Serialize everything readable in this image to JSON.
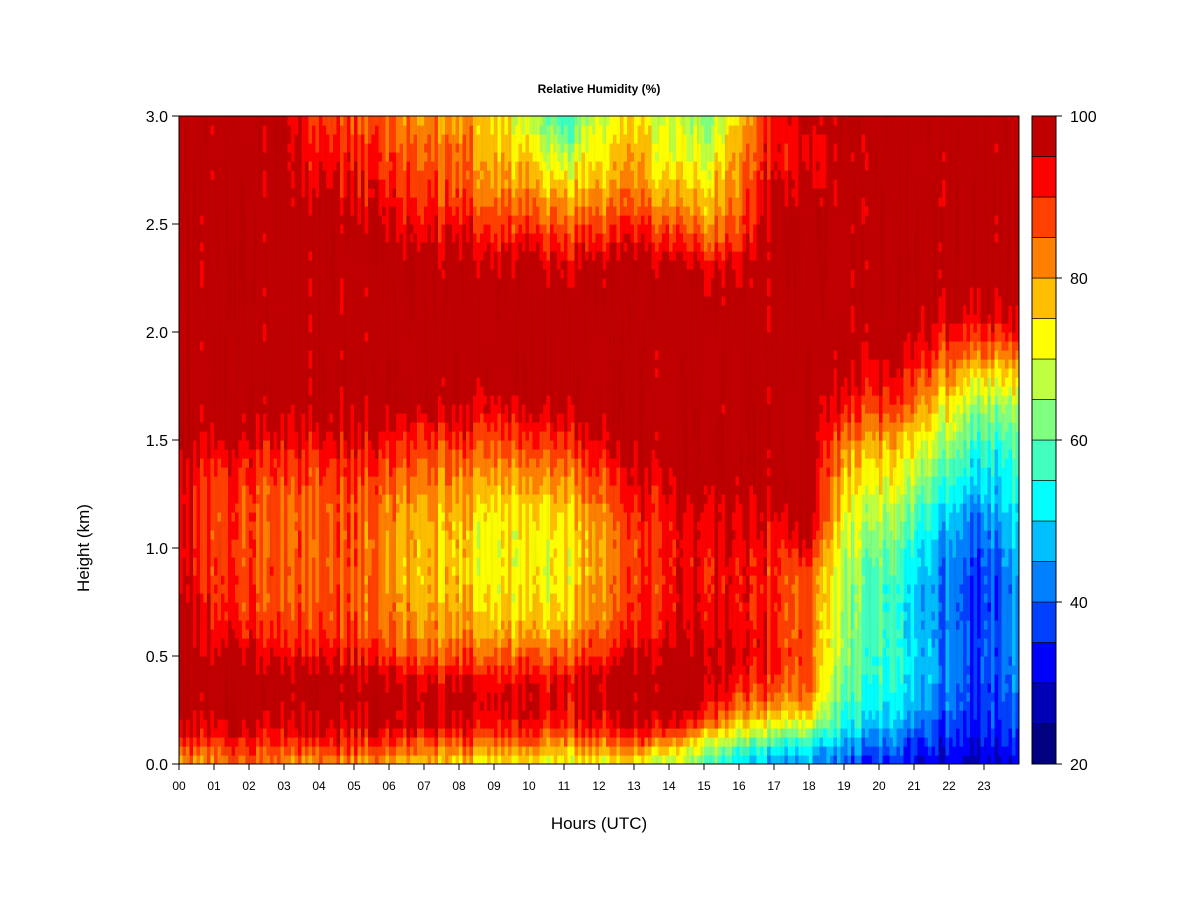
{
  "chart_data": {
    "type": "heatmap",
    "title": "Relative Humidity (%)",
    "xlabel": "Hours (UTC)",
    "ylabel": "Height (km)",
    "xlim": [
      0,
      24
    ],
    "ylim": [
      0.0,
      3.0
    ],
    "x_ticks": [
      0,
      1,
      2,
      3,
      4,
      5,
      6,
      7,
      8,
      9,
      10,
      11,
      12,
      13,
      14,
      15,
      16,
      17,
      18,
      19,
      20,
      21,
      22,
      23
    ],
    "x_tick_labels": [
      "00",
      "01",
      "02",
      "03",
      "04",
      "05",
      "06",
      "07",
      "08",
      "09",
      "10",
      "11",
      "12",
      "13",
      "14",
      "15",
      "16",
      "17",
      "18",
      "19",
      "20",
      "21",
      "22",
      "23"
    ],
    "y_ticks": [
      0.0,
      0.5,
      1.0,
      1.5,
      2.0,
      2.5,
      3.0
    ],
    "y_tick_labels": [
      "0.0",
      "0.5",
      "1.0",
      "1.5",
      "2.0",
      "2.5",
      "3.0"
    ],
    "colorbar": {
      "range": [
        20,
        100
      ],
      "levels": [
        20,
        25,
        30,
        35,
        40,
        45,
        50,
        55,
        60,
        65,
        70,
        75,
        80,
        85,
        90,
        95,
        100
      ],
      "colors": [
        "#000080",
        "#0000b4",
        "#0000ff",
        "#0040ff",
        "#0080ff",
        "#00bfff",
        "#00ffff",
        "#40ffbf",
        "#80ff80",
        "#bfff40",
        "#ffff00",
        "#ffbf00",
        "#ff8000",
        "#ff4000",
        "#ff0000",
        "#c00000",
        "#800000"
      ],
      "tick_values": [
        20,
        40,
        60,
        80,
        100
      ],
      "tick_labels": [
        "20",
        "40",
        "60",
        "80",
        "100"
      ]
    },
    "grid": false,
    "legend": "colorbar-right",
    "heights_km": [
      0.0,
      0.05,
      0.1,
      0.15,
      0.2,
      0.3,
      0.4,
      0.5,
      0.6,
      0.7,
      0.8,
      0.9,
      1.0,
      1.1,
      1.2,
      1.3,
      1.4,
      1.5,
      1.6,
      1.7,
      1.8,
      1.9,
      2.0,
      2.1,
      2.2,
      2.3,
      2.4,
      2.5,
      2.6,
      2.7,
      2.8,
      2.9,
      3.0
    ],
    "hours_utc": [
      0,
      1,
      2,
      3,
      4,
      5,
      6,
      7,
      8,
      9,
      10,
      11,
      12,
      13,
      14,
      15,
      16,
      17,
      18,
      19,
      20,
      21,
      22,
      23,
      24
    ],
    "rh_percent_profiles": [
      [
        80,
        85,
        90,
        95,
        97,
        100,
        100,
        100,
        100,
        100,
        98,
        97,
        96,
        96,
        96,
        97,
        97,
        98,
        100,
        100,
        100,
        100,
        100,
        100,
        100,
        100,
        100,
        100,
        100,
        100,
        100,
        100,
        100
      ],
      [
        82,
        86,
        90,
        94,
        96,
        100,
        100,
        98,
        94,
        92,
        90,
        90,
        88,
        88,
        88,
        90,
        92,
        96,
        100,
        100,
        100,
        100,
        100,
        100,
        100,
        100,
        100,
        100,
        100,
        100,
        100,
        100,
        100
      ],
      [
        83,
        87,
        90,
        94,
        96,
        100,
        100,
        95,
        90,
        88,
        87,
        87,
        86,
        86,
        86,
        88,
        90,
        94,
        98,
        100,
        100,
        100,
        100,
        100,
        100,
        100,
        100,
        100,
        100,
        100,
        100,
        100,
        100
      ],
      [
        81,
        86,
        90,
        94,
        96,
        100,
        99,
        94,
        90,
        88,
        87,
        87,
        86,
        86,
        86,
        88,
        90,
        94,
        98,
        100,
        100,
        100,
        100,
        100,
        100,
        100,
        100,
        100,
        100,
        100,
        100,
        100,
        97
      ],
      [
        81,
        86,
        91,
        95,
        97,
        100,
        99,
        94,
        90,
        88,
        87,
        86,
        86,
        86,
        86,
        88,
        90,
        94,
        97,
        100,
        100,
        100,
        100,
        100,
        100,
        100,
        100,
        100,
        98,
        95,
        92,
        90,
        88
      ],
      [
        80,
        85,
        90,
        94,
        96,
        100,
        98,
        92,
        89,
        87,
        86,
        86,
        86,
        86,
        87,
        89,
        91,
        95,
        98,
        100,
        100,
        100,
        100,
        100,
        100,
        100,
        100,
        99,
        96,
        93,
        91,
        89,
        87
      ],
      [
        79,
        84,
        89,
        93,
        96,
        99,
        95,
        88,
        84,
        82,
        81,
        80,
        80,
        81,
        82,
        85,
        88,
        92,
        96,
        100,
        100,
        100,
        100,
        100,
        100,
        100,
        98,
        95,
        92,
        90,
        88,
        86,
        84
      ],
      [
        76,
        82,
        88,
        93,
        96,
        99,
        94,
        86,
        82,
        80,
        78,
        78,
        78,
        79,
        80,
        83,
        86,
        90,
        95,
        100,
        100,
        100,
        100,
        100,
        100,
        100,
        97,
        93,
        90,
        88,
        86,
        84,
        82
      ],
      [
        74,
        80,
        86,
        92,
        95,
        98,
        94,
        86,
        82,
        79,
        77,
        76,
        76,
        77,
        78,
        81,
        85,
        89,
        94,
        98,
        100,
        100,
        100,
        100,
        100,
        99,
        96,
        92,
        88,
        86,
        84,
        82,
        80
      ],
      [
        74,
        79,
        85,
        90,
        94,
        96,
        93,
        86,
        80,
        76,
        74,
        73,
        73,
        74,
        76,
        80,
        84,
        88,
        93,
        97,
        100,
        100,
        100,
        100,
        100,
        98,
        94,
        89,
        85,
        82,
        80,
        78,
        76
      ],
      [
        72,
        77,
        83,
        88,
        92,
        95,
        92,
        84,
        78,
        74,
        72,
        71,
        71,
        72,
        74,
        78,
        82,
        87,
        92,
        97,
        100,
        100,
        100,
        100,
        100,
        97,
        92,
        87,
        82,
        78,
        74,
        70,
        66
      ],
      [
        70,
        75,
        81,
        87,
        91,
        94,
        92,
        86,
        80,
        76,
        74,
        73,
        73,
        74,
        77,
        81,
        85,
        90,
        95,
        99,
        100,
        100,
        100,
        100,
        99,
        95,
        90,
        85,
        80,
        74,
        68,
        62,
        56
      ],
      [
        72,
        77,
        83,
        89,
        93,
        96,
        95,
        90,
        85,
        82,
        80,
        79,
        79,
        80,
        83,
        86,
        90,
        94,
        98,
        100,
        100,
        100,
        100,
        100,
        100,
        97,
        92,
        87,
        82,
        78,
        74,
        71,
        68
      ],
      [
        72,
        78,
        85,
        92,
        96,
        98,
        97,
        94,
        90,
        88,
        87,
        87,
        87,
        88,
        90,
        92,
        95,
        98,
        100,
        100,
        100,
        100,
        100,
        100,
        100,
        98,
        94,
        89,
        84,
        80,
        78,
        76,
        74
      ],
      [
        66,
        72,
        82,
        90,
        96,
        100,
        100,
        98,
        94,
        92,
        91,
        91,
        91,
        92,
        94,
        96,
        98,
        100,
        100,
        100,
        100,
        100,
        100,
        100,
        100,
        98,
        92,
        86,
        80,
        76,
        72,
        70,
        68
      ],
      [
        60,
        66,
        72,
        80,
        88,
        97,
        99,
        98,
        96,
        94,
        93,
        93,
        94,
        95,
        97,
        99,
        100,
        100,
        100,
        100,
        100,
        100,
        100,
        100,
        99,
        95,
        88,
        82,
        78,
        74,
        70,
        66,
        62
      ],
      [
        52,
        56,
        64,
        72,
        78,
        88,
        94,
        96,
        95,
        94,
        94,
        94,
        95,
        96,
        98,
        100,
        100,
        100,
        100,
        100,
        100,
        100,
        100,
        100,
        100,
        97,
        92,
        88,
        86,
        84,
        82,
        80,
        78
      ],
      [
        46,
        50,
        58,
        66,
        74,
        84,
        90,
        92,
        91,
        90,
        90,
        90,
        91,
        93,
        96,
        99,
        100,
        100,
        100,
        100,
        100,
        100,
        100,
        100,
        100,
        100,
        100,
        100,
        98,
        96,
        94,
        93,
        92
      ],
      [
        44,
        48,
        54,
        62,
        70,
        80,
        84,
        84,
        84,
        84,
        84,
        86,
        92,
        98,
        100,
        100,
        100,
        100,
        100,
        100,
        100,
        100,
        100,
        100,
        100,
        100,
        100,
        100,
        97,
        94,
        92,
        93,
        98
      ],
      [
        40,
        44,
        48,
        52,
        56,
        60,
        62,
        64,
        65,
        66,
        67,
        68,
        70,
        72,
        74,
        76,
        80,
        84,
        90,
        94,
        98,
        100,
        100,
        100,
        100,
        100,
        100,
        100,
        100,
        100,
        100,
        100,
        100
      ],
      [
        34,
        38,
        42,
        46,
        50,
        54,
        56,
        57,
        58,
        58,
        58,
        60,
        62,
        65,
        68,
        72,
        76,
        80,
        86,
        90,
        94,
        98,
        100,
        100,
        100,
        100,
        100,
        100,
        100,
        100,
        100,
        100,
        100
      ],
      [
        32,
        34,
        37,
        40,
        44,
        48,
        50,
        51,
        50,
        50,
        50,
        52,
        54,
        58,
        62,
        66,
        70,
        74,
        80,
        86,
        90,
        94,
        98,
        100,
        100,
        100,
        100,
        100,
        100,
        100,
        100,
        100,
        100
      ],
      [
        30,
        32,
        34,
        36,
        38,
        40,
        42,
        42,
        42,
        41,
        41,
        42,
        44,
        46,
        50,
        55,
        60,
        65,
        70,
        74,
        80,
        86,
        92,
        97,
        100,
        100,
        100,
        100,
        100,
        100,
        100,
        100,
        100
      ],
      [
        28,
        30,
        32,
        33,
        34,
        35,
        36,
        36,
        36,
        35,
        35,
        36,
        38,
        40,
        44,
        48,
        52,
        56,
        60,
        66,
        74,
        82,
        90,
        95,
        100,
        100,
        100,
        100,
        100,
        100,
        100,
        100,
        100
      ],
      [
        30,
        32,
        34,
        36,
        38,
        40,
        42,
        43,
        44,
        44,
        45,
        46,
        48,
        50,
        52,
        54,
        56,
        58,
        62,
        68,
        76,
        84,
        92,
        96,
        100,
        100,
        100,
        100,
        100,
        100,
        100,
        100,
        100
      ]
    ]
  }
}
